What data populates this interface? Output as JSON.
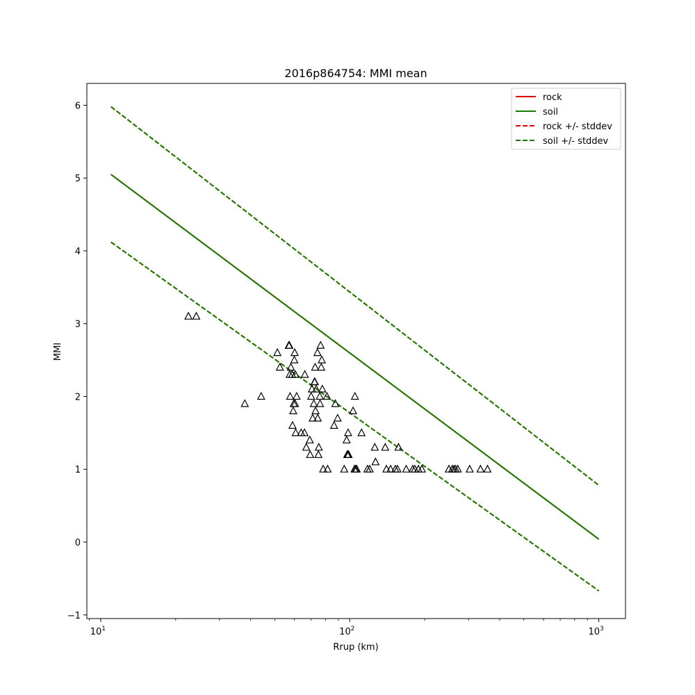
{
  "chart_data": {
    "type": "scatter",
    "title": "2016p864754: MMI mean",
    "xlabel": "Rrup (km)",
    "ylabel": "MMI",
    "xscale": "log",
    "xlim": [
      8.8,
      1280
    ],
    "ylim": [
      -1.05,
      6.3
    ],
    "x_ticks": [
      {
        "value": 10,
        "base": "10",
        "exp": "1"
      },
      {
        "value": 100,
        "base": "10",
        "exp": "2"
      },
      {
        "value": 1000,
        "base": "10",
        "exp": "3"
      }
    ],
    "y_ticks": [
      -1,
      0,
      1,
      2,
      3,
      4,
      5,
      6
    ],
    "y_tick_labels": [
      "−1",
      "0",
      "1",
      "2",
      "3",
      "4",
      "5",
      "6"
    ],
    "grid": false,
    "legend_position": "upper right",
    "colors": {
      "rock": "#dd0000",
      "soil": "#1a7a00",
      "observations": "#000000"
    },
    "series": [
      {
        "name": "rock",
        "style": "solid",
        "color": "#dd0000",
        "x": [
          11,
          1000
        ],
        "y": [
          5.05,
          0.04
        ]
      },
      {
        "name": "soil",
        "style": "solid",
        "color": "#1a7a00",
        "x": [
          11,
          1000
        ],
        "y": [
          5.05,
          0.04
        ]
      },
      {
        "name": "rock +/- stddev",
        "style": "dashed",
        "color": "#dd0000",
        "bands": [
          {
            "x": [
              11,
              1000
            ],
            "y": [
              5.98,
              0.78
            ]
          },
          {
            "x": [
              11,
              1000
            ],
            "y": [
              4.12,
              -0.67
            ]
          }
        ]
      },
      {
        "name": "soil +/- stddev",
        "style": "dashed",
        "color": "#1a7a00",
        "bands": [
          {
            "x": [
              11,
              1000
            ],
            "y": [
              5.98,
              0.78
            ]
          },
          {
            "x": [
              11,
              1000
            ],
            "y": [
              4.12,
              -0.67
            ]
          }
        ]
      }
    ],
    "observations": {
      "marker": "triangle",
      "points": [
        [
          22.5,
          3.1
        ],
        [
          24.2,
          3.1
        ],
        [
          37.9,
          1.9
        ],
        [
          44.1,
          2.0
        ],
        [
          51.2,
          2.6
        ],
        [
          52.4,
          2.4
        ],
        [
          56.9,
          2.7
        ],
        [
          57.2,
          2.7
        ],
        [
          57.4,
          2.3
        ],
        [
          57.6,
          2.0
        ],
        [
          58.0,
          2.4
        ],
        [
          58.7,
          2.3
        ],
        [
          58.9,
          1.6
        ],
        [
          59.3,
          1.8
        ],
        [
          59.6,
          1.9
        ],
        [
          59.9,
          2.5
        ],
        [
          60.1,
          2.6
        ],
        [
          60.5,
          2.3
        ],
        [
          60.3,
          1.9
        ],
        [
          60.7,
          1.5
        ],
        [
          61.2,
          2.0
        ],
        [
          63.8,
          1.5
        ],
        [
          65.8,
          1.5
        ],
        [
          66.0,
          2.3
        ],
        [
          66.9,
          1.3
        ],
        [
          69.1,
          1.4
        ],
        [
          69.3,
          1.2
        ],
        [
          70.0,
          2.0
        ],
        [
          70.5,
          2.1
        ],
        [
          71.0,
          1.7
        ],
        [
          71.7,
          1.9
        ],
        [
          72.2,
          2.2
        ],
        [
          72.4,
          2.2
        ],
        [
          72.6,
          2.4
        ],
        [
          72.9,
          1.8
        ],
        [
          73.3,
          2.1
        ],
        [
          74.2,
          2.6
        ],
        [
          74.4,
          1.7
        ],
        [
          74.8,
          1.2
        ],
        [
          75.1,
          1.3
        ],
        [
          75.8,
          2.0
        ],
        [
          76.0,
          1.9
        ],
        [
          76.4,
          2.7
        ],
        [
          76.8,
          2.4
        ],
        [
          77.2,
          2.5
        ],
        [
          77.6,
          2.1
        ],
        [
          78.2,
          1.0
        ],
        [
          81.0,
          2.0
        ],
        [
          81.5,
          1.0
        ],
        [
          86.5,
          1.6
        ],
        [
          87.5,
          1.9
        ],
        [
          89.4,
          1.7
        ],
        [
          95.0,
          1.0
        ],
        [
          97.2,
          1.4
        ],
        [
          97.7,
          1.2
        ],
        [
          98.3,
          1.2
        ],
        [
          98.5,
          1.5
        ],
        [
          98.9,
          1.2
        ],
        [
          103.1,
          1.8
        ],
        [
          104.5,
          1.0
        ],
        [
          104.9,
          2.0
        ],
        [
          105.6,
          1.0
        ],
        [
          106.6,
          1.0
        ],
        [
          111.5,
          1.5
        ],
        [
          117.8,
          1.0
        ],
        [
          120.2,
          1.0
        ],
        [
          126.1,
          1.3
        ],
        [
          126.9,
          1.1
        ],
        [
          138.8,
          1.3
        ],
        [
          140.4,
          1.0
        ],
        [
          145.9,
          1.0
        ],
        [
          152.4,
          1.0
        ],
        [
          155.5,
          1.0
        ],
        [
          157.0,
          1.3
        ],
        [
          168.6,
          1.0
        ],
        [
          179.0,
          1.0
        ],
        [
          182.4,
          1.0
        ],
        [
          188.6,
          1.0
        ],
        [
          194.8,
          1.0
        ],
        [
          250.1,
          1.0
        ],
        [
          257.9,
          1.0
        ],
        [
          262.0,
          1.0
        ],
        [
          266.0,
          1.0
        ],
        [
          271.6,
          1.0
        ],
        [
          303.1,
          1.0
        ],
        [
          334.9,
          1.0
        ],
        [
          357.2,
          1.0
        ]
      ]
    }
  },
  "legend": {
    "items": [
      {
        "label": "rock",
        "style": "solid",
        "color": "#dd0000"
      },
      {
        "label": "soil",
        "style": "solid",
        "color": "#1a7a00"
      },
      {
        "label": "rock +/- stddev",
        "style": "dashed",
        "color": "#dd0000"
      },
      {
        "label": "soil +/- stddev",
        "style": "dashed",
        "color": "#1a7a00"
      }
    ]
  }
}
